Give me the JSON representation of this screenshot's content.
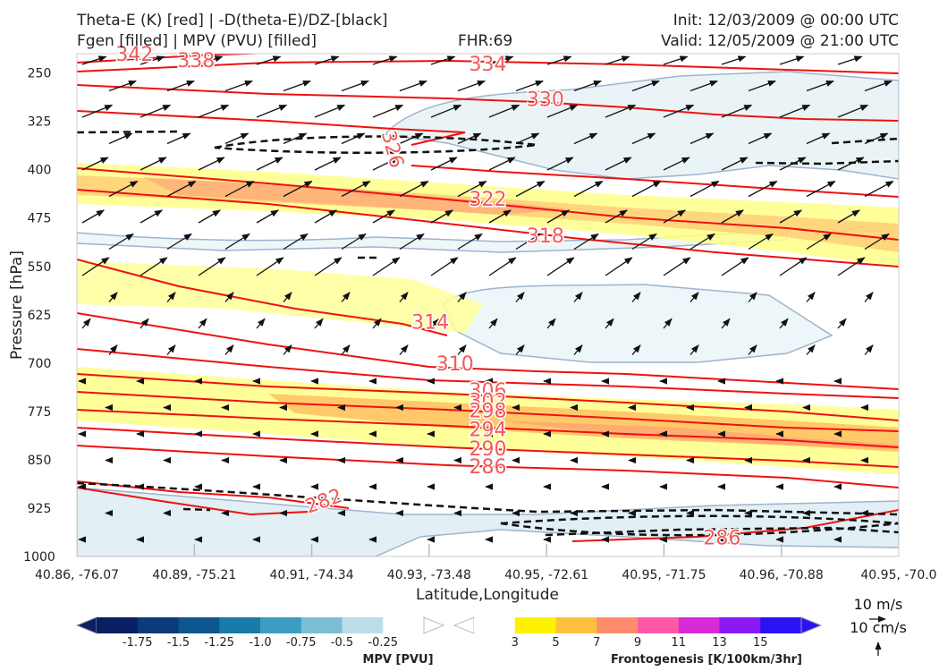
{
  "header": {
    "title_line1": "Theta-E (K) [red] | -D(theta-E)/DZ-[black]",
    "title_line2": "Fgen [filled] | MPV (PVU) [filled]",
    "fhr": "FHR:69",
    "init": "Init: 12/03/2009 @ 00:00 UTC",
    "valid": "Valid: 12/05/2009 @ 21:00 UTC"
  },
  "chart_data": {
    "type": "cross-section",
    "ylabel": "Pressure [hPa]",
    "xlabel": "Latitude,Longitude",
    "y_axis": {
      "inverted": true,
      "range": [
        220,
        1000
      ],
      "ticks": [
        250,
        325,
        400,
        475,
        550,
        625,
        700,
        775,
        850,
        925,
        1000
      ]
    },
    "x_ticks": [
      "40.86, -76.07",
      "40.89, -75.21",
      "40.91, -74.34",
      "40.93, -73.48",
      "40.95, -72.61",
      "40.95, -71.75",
      "40.96, -70.88",
      "40.95, -70.0"
    ],
    "theta_e_contours": [
      {
        "label": "342",
        "pressure": 220,
        "position": 0.07
      },
      {
        "label": "338",
        "pressure": 230,
        "position": 0.145
      },
      {
        "label": "334",
        "pressure": 235,
        "position": 0.5
      },
      {
        "label": "330",
        "pressure": 290,
        "position": 0.57
      },
      {
        "label": "326",
        "pressure": 368,
        "position": 0.385
      },
      {
        "label": "322",
        "pressure": 445,
        "position": 0.5
      },
      {
        "label": "318",
        "pressure": 502,
        "position": 0.57
      },
      {
        "label": "314",
        "pressure": 636,
        "position": 0.43
      },
      {
        "label": "310",
        "pressure": 700,
        "position": 0.46
      },
      {
        "label": "306",
        "pressure": 742,
        "position": 0.5
      },
      {
        "label": "302",
        "pressure": 758,
        "position": 0.5
      },
      {
        "label": "298",
        "pressure": 773,
        "position": 0.5
      },
      {
        "label": "294",
        "pressure": 802,
        "position": 0.5
      },
      {
        "label": "290",
        "pressure": 832,
        "position": 0.5
      },
      {
        "label": "286",
        "pressure": 860,
        "position": 0.5
      },
      {
        "label": "282",
        "pressure": 913,
        "position": 0.3
      },
      {
        "label": "286",
        "pressure": 970,
        "position": 0.785
      }
    ],
    "fgen_colorbar": {
      "label": "Frontogenesis [K/100km/3hr]",
      "ticks": [
        "3",
        "5",
        "7",
        "9",
        "11",
        "13",
        "15"
      ],
      "colors": [
        "#ffffff",
        "#fff200",
        "#ffc040",
        "#ff8c6a",
        "#ff59a6",
        "#d62bd6",
        "#8a19f2",
        "#2a12f5"
      ]
    },
    "mpv_colorbar": {
      "label": "MPV [PVU]",
      "ticks": [
        "-1.75",
        "-1.5",
        "-1.25",
        "-1.0",
        "-0.75",
        "-0.5",
        "-0.25"
      ],
      "colors": [
        "#0b1f63",
        "#0d3a78",
        "#0d5690",
        "#1a7aa8",
        "#3d9cc2",
        "#7cbdd4",
        "#bcdee6",
        "#ffffff"
      ]
    },
    "wind_reference": {
      "speed_label": "10 m/s",
      "vertical_label": "10 cm/s"
    }
  }
}
